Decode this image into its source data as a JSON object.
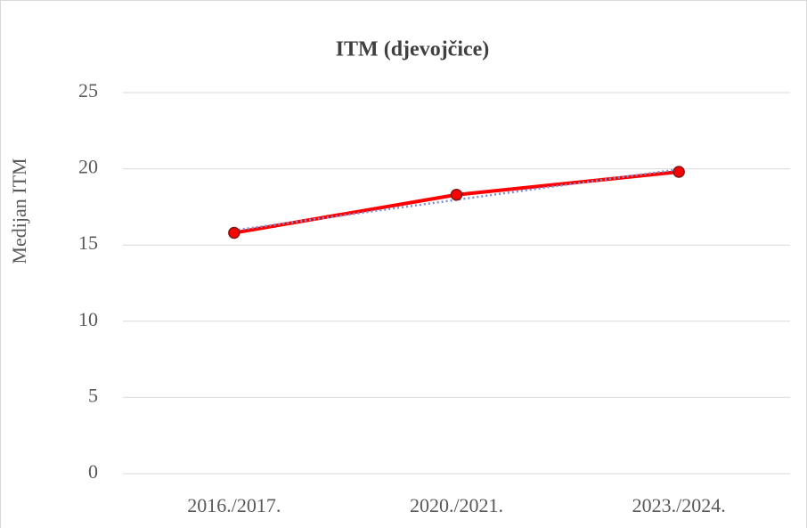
{
  "chart_data": {
    "type": "line",
    "title": "ITM (djevojčice)",
    "y_label": "Medijan ITM",
    "categories": [
      "2016./2017.",
      "2020./2021.",
      "2023./2024."
    ],
    "series": [
      {
        "name": "ITM",
        "color": "#ff0000",
        "values": [
          15.8,
          18.3,
          19.8
        ]
      }
    ],
    "trendline": true,
    "trendline_color": "#7b8ed8",
    "ylim": [
      0,
      25
    ],
    "yticks": [
      0,
      5,
      10,
      15,
      20,
      25
    ],
    "grid": true
  }
}
